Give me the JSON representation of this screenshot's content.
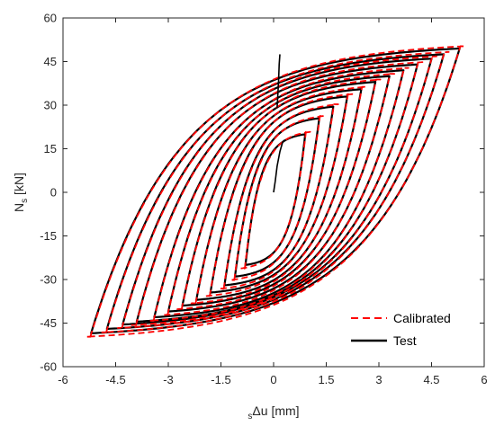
{
  "chart_data": {
    "type": "line",
    "title": "",
    "xlabel": {
      "subscript": "s",
      "main": "Δu [mm]"
    },
    "ylabel": {
      "main": "N",
      "subscript": "s",
      "unit": " [kN]"
    },
    "xlim": [
      -6,
      6
    ],
    "ylim": [
      -60,
      60
    ],
    "xticks": [
      "-6",
      "-4.5",
      "-3",
      "-1.5",
      "0",
      "1.5",
      "3",
      "4.5",
      "6"
    ],
    "yticks": [
      "60",
      "45",
      "30",
      "15",
      "0",
      "-15",
      "-30",
      "-45",
      "-60"
    ],
    "grid": false,
    "legend_position": "bottom-right",
    "cycles": [
      {
        "xmax": 0.9,
        "xmin": -0.8,
        "fmax": 20,
        "fmin": -25
      },
      {
        "xmax": 1.3,
        "xmin": -1.1,
        "fmax": 25.5,
        "fmin": -29
      },
      {
        "xmax": 1.7,
        "xmin": -1.4,
        "fmax": 29.5,
        "fmin": -32
      },
      {
        "xmax": 2.1,
        "xmin": -1.8,
        "fmax": 33,
        "fmin": -34.5
      },
      {
        "xmax": 2.5,
        "xmin": -2.2,
        "fmax": 35.5,
        "fmin": -37
      },
      {
        "xmax": 2.9,
        "xmin": -2.6,
        "fmax": 38,
        "fmin": -39
      },
      {
        "xmax": 3.3,
        "xmin": -3.0,
        "fmax": 40,
        "fmin": -41
      },
      {
        "xmax": 3.7,
        "xmin": -3.4,
        "fmax": 42,
        "fmin": -43
      },
      {
        "xmax": 4.1,
        "xmin": -3.9,
        "fmax": 44,
        "fmin": -44.5
      },
      {
        "xmax": 4.5,
        "xmin": -4.3,
        "fmax": 46,
        "fmin": -45.5
      },
      {
        "xmax": 4.85,
        "xmin": -4.75,
        "fmax": 47.5,
        "fmin": -47
      },
      {
        "xmax": 5.3,
        "xmin": -5.2,
        "fmax": 49.5,
        "fmin": -48.5
      }
    ],
    "series": [
      {
        "name": "Calibrated",
        "color": "#ff0000",
        "style": "dashed"
      },
      {
        "name": "Test",
        "color": "#000000",
        "style": "solid"
      }
    ]
  }
}
